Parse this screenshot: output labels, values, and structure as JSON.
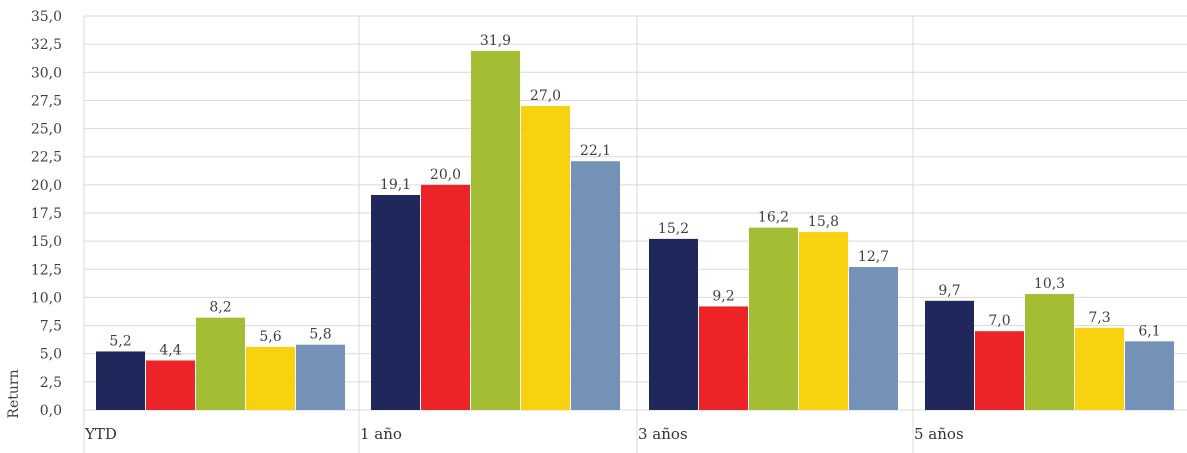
{
  "chart_data": {
    "type": "bar",
    "title": "",
    "xlabel": "",
    "ylabel": "Return",
    "ylim": [
      0,
      35
    ],
    "ytick_step": 2.5,
    "ytick_labels": [
      "0,0",
      "2,5",
      "5,0",
      "7,5",
      "10,0",
      "12,5",
      "15,0",
      "17,5",
      "20,0",
      "22,5",
      "25,0",
      "27,5",
      "30,0",
      "32,5",
      "35,0"
    ],
    "grid": true,
    "legend": "none",
    "categories": [
      "YTD",
      "1 año",
      "3 años",
      "5 años"
    ],
    "series": [
      {
        "color": "#20275a",
        "values": [
          5.2,
          19.1,
          15.2,
          9.7
        ],
        "labels": [
          "5,2",
          "19,1",
          "15,2",
          "9,7"
        ]
      },
      {
        "color": "#ec2327",
        "values": [
          4.4,
          20.0,
          9.2,
          7.0
        ],
        "labels": [
          "4,4",
          "20,0",
          "9,2",
          "7,0"
        ]
      },
      {
        "color": "#a3bd35",
        "values": [
          8.2,
          31.9,
          16.2,
          10.3
        ],
        "labels": [
          "8,2",
          "31,9",
          "16,2",
          "10,3"
        ]
      },
      {
        "color": "#f8d20e",
        "values": [
          5.6,
          27.0,
          15.8,
          7.3
        ],
        "labels": [
          "5,6",
          "27,0",
          "15,8",
          "7,3"
        ]
      },
      {
        "color": "#7491b8",
        "values": [
          5.8,
          22.1,
          12.7,
          6.1
        ],
        "labels": [
          "5,8",
          "22,1",
          "12,7",
          "6,1"
        ]
      }
    ]
  }
}
